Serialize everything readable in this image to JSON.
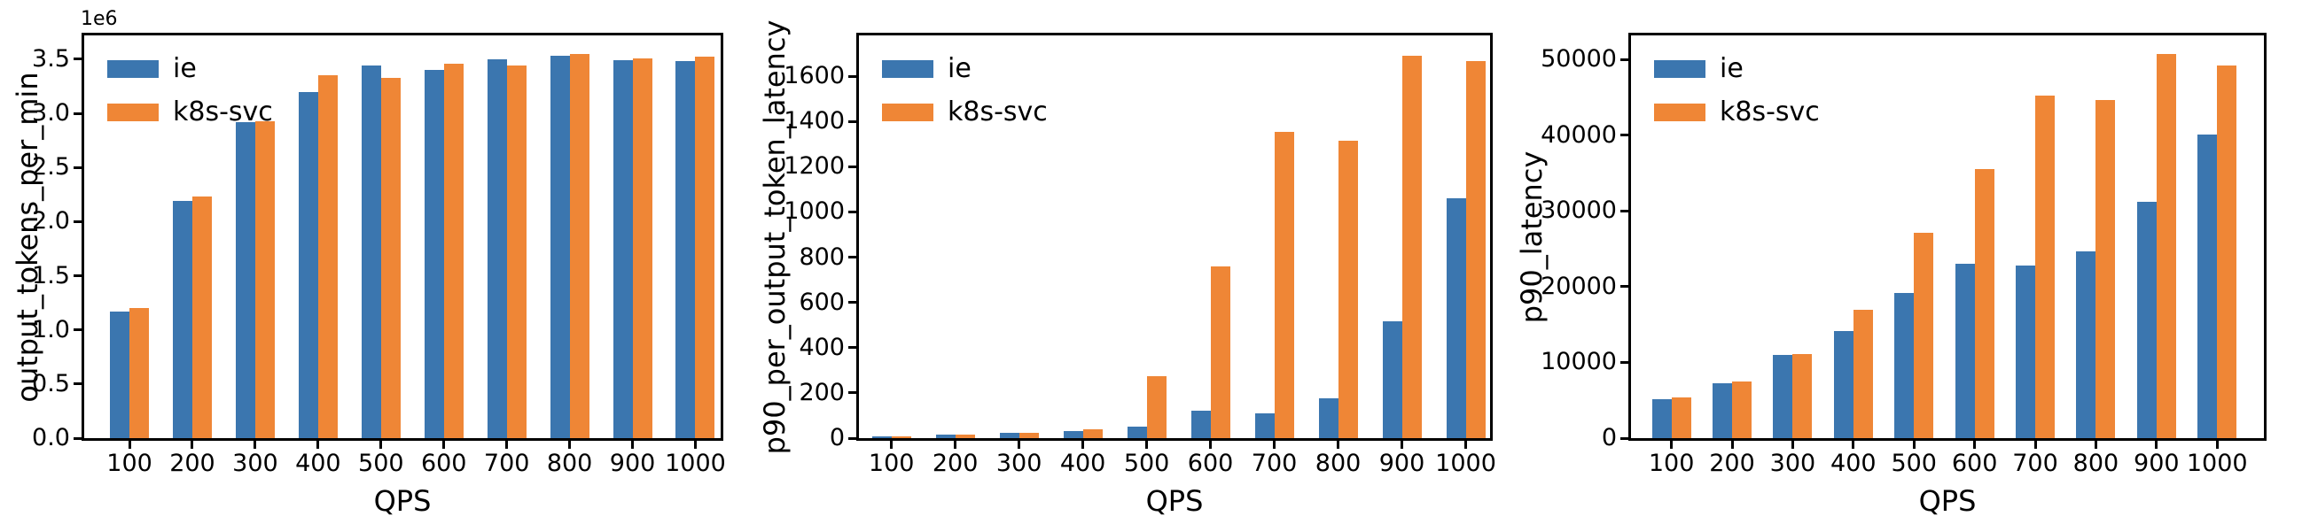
{
  "figure": {
    "background": "#ffffff"
  },
  "series_colors": {
    "ie": "#3B76AF",
    "k8s-svc": "#EF8636"
  },
  "chart_data": [
    {
      "type": "bar",
      "title": "",
      "xlabel": "QPS",
      "ylabel": "output_tokens_per_min",
      "y_offset_text": "1e6",
      "legend_position": "upper left",
      "grid": false,
      "categories": [
        "100",
        "200",
        "300",
        "400",
        "500",
        "600",
        "700",
        "800",
        "900",
        "1000"
      ],
      "series": [
        {
          "name": "ie",
          "color": "#3B76AF",
          "values": [
            1170000,
            2190000,
            2920000,
            3200000,
            3440000,
            3400000,
            3500000,
            3530000,
            3490000,
            3480000
          ]
        },
        {
          "name": "k8s-svc",
          "color": "#EF8636",
          "values": [
            1200000,
            2230000,
            2930000,
            3350000,
            3330000,
            3460000,
            3440000,
            3545000,
            3505000,
            3520000
          ]
        }
      ],
      "ylim": [
        0,
        3720000
      ],
      "yticks": [
        {
          "value": 0,
          "label": "0.0"
        },
        {
          "value": 500000,
          "label": "0.5"
        },
        {
          "value": 1000000,
          "label": "1.0"
        },
        {
          "value": 1500000,
          "label": "1.5"
        },
        {
          "value": 2000000,
          "label": "2.0"
        },
        {
          "value": 2500000,
          "label": "2.5"
        },
        {
          "value": 3000000,
          "label": "3.0"
        },
        {
          "value": 3500000,
          "label": "3.5"
        }
      ]
    },
    {
      "type": "bar",
      "title": "",
      "xlabel": "QPS",
      "ylabel": "p90_per_output_token_latency",
      "y_offset_text": "",
      "legend_position": "upper left",
      "grid": false,
      "categories": [
        "100",
        "200",
        "300",
        "400",
        "500",
        "600",
        "700",
        "800",
        "900",
        "1000"
      ],
      "series": [
        {
          "name": "ie",
          "color": "#3B76AF",
          "values": [
            8,
            15,
            23,
            33,
            52,
            120,
            110,
            175,
            515,
            1060
          ]
        },
        {
          "name": "k8s-svc",
          "color": "#EF8636",
          "values": [
            8,
            16,
            23,
            38,
            275,
            760,
            1355,
            1315,
            1690,
            1665
          ]
        }
      ],
      "ylim": [
        0,
        1780
      ],
      "yticks": [
        {
          "value": 0,
          "label": "0"
        },
        {
          "value": 200,
          "label": "200"
        },
        {
          "value": 400,
          "label": "400"
        },
        {
          "value": 600,
          "label": "600"
        },
        {
          "value": 800,
          "label": "800"
        },
        {
          "value": 1000,
          "label": "1000"
        },
        {
          "value": 1200,
          "label": "1200"
        },
        {
          "value": 1400,
          "label": "1400"
        },
        {
          "value": 1600,
          "label": "1600"
        }
      ]
    },
    {
      "type": "bar",
      "title": "",
      "xlabel": "QPS",
      "ylabel": "p90_latency",
      "y_offset_text": "",
      "legend_position": "upper left",
      "grid": false,
      "categories": [
        "100",
        "200",
        "300",
        "400",
        "500",
        "600",
        "700",
        "800",
        "900",
        "1000"
      ],
      "series": [
        {
          "name": "ie",
          "color": "#3B76AF",
          "values": [
            5200,
            7250,
            10950,
            14100,
            19200,
            23000,
            22800,
            24650,
            31250,
            40150
          ]
        },
        {
          "name": "k8s-svc",
          "color": "#EF8636",
          "values": [
            5400,
            7500,
            11150,
            16900,
            27100,
            35500,
            45250,
            44700,
            50700,
            49250
          ]
        }
      ],
      "ylim": [
        0,
        53200
      ],
      "yticks": [
        {
          "value": 0,
          "label": "0"
        },
        {
          "value": 10000,
          "label": "10000"
        },
        {
          "value": 20000,
          "label": "20000"
        },
        {
          "value": 30000,
          "label": "30000"
        },
        {
          "value": 40000,
          "label": "40000"
        },
        {
          "value": 50000,
          "label": "50000"
        }
      ]
    }
  ]
}
